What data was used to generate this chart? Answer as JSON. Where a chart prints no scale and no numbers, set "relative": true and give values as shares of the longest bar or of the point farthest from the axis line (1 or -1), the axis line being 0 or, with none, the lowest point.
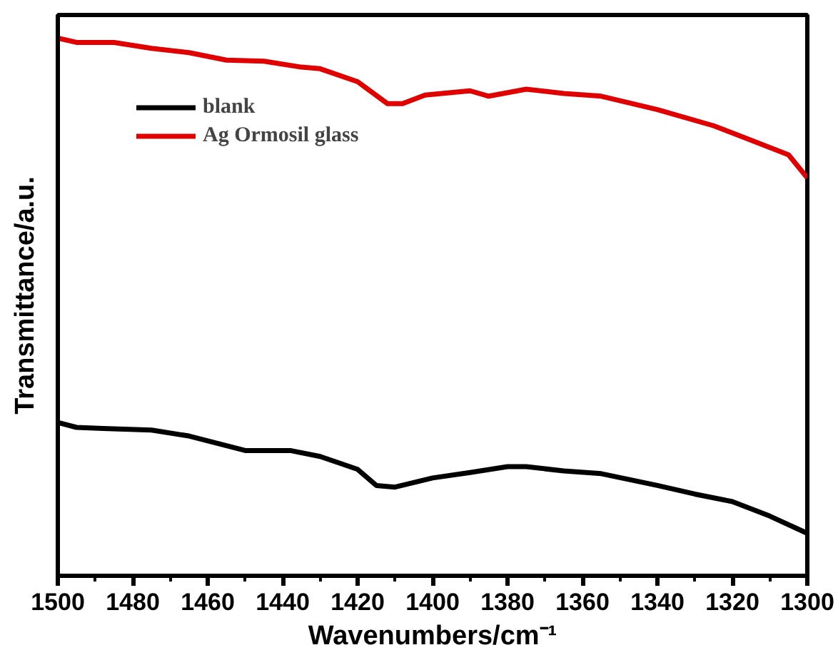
{
  "chart_data": {
    "type": "line",
    "xlabel": "Wavenumbers/cm⁻¹",
    "ylabel": "Transmittance/a.u.",
    "relative": true,
    "xlim": [
      1500,
      1300
    ],
    "xticks": [
      1500,
      1480,
      1460,
      1440,
      1420,
      1400,
      1380,
      1360,
      1340,
      1320,
      1300
    ],
    "legend": "top left",
    "grid": false,
    "series": [
      {
        "name": "blank",
        "color": "#000000",
        "x": [
          1500,
          1495,
          1488,
          1475,
          1465,
          1450,
          1438,
          1430,
          1420,
          1415,
          1410,
          1400,
          1390,
          1380,
          1375,
          1365,
          1355,
          1340,
          1330,
          1320,
          1310,
          1300
        ],
        "values": [
          0.285,
          0.276,
          0.274,
          0.271,
          0.26,
          0.233,
          0.233,
          0.222,
          0.198,
          0.168,
          0.165,
          0.182,
          0.192,
          0.203,
          0.203,
          0.195,
          0.19,
          0.168,
          0.152,
          0.138,
          0.111,
          0.079
        ]
      },
      {
        "name": "Ag Ormosil glass",
        "color": "#e00000",
        "x": [
          1500,
          1495,
          1485,
          1475,
          1465,
          1455,
          1445,
          1435,
          1430,
          1420,
          1412,
          1408,
          1402,
          1390,
          1385,
          1375,
          1365,
          1355,
          1340,
          1325,
          1315,
          1305,
          1300
        ],
        "values": [
          1.0,
          0.992,
          0.992,
          0.981,
          0.973,
          0.959,
          0.957,
          0.946,
          0.943,
          0.919,
          0.878,
          0.878,
          0.894,
          0.902,
          0.892,
          0.905,
          0.897,
          0.892,
          0.867,
          0.837,
          0.81,
          0.783,
          0.74
        ]
      }
    ]
  }
}
